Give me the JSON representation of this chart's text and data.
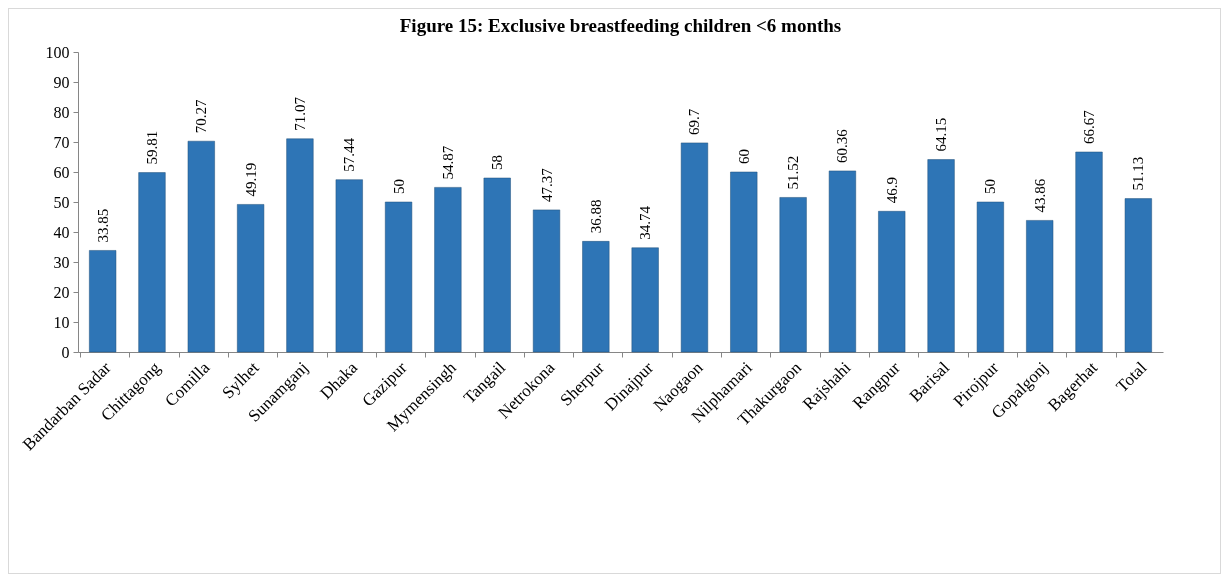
{
  "chart_data": {
    "type": "bar",
    "title": "Figure 15: Exclusive breastfeeding children <6 months",
    "categories": [
      "Bandarban Sadar",
      "Chittagong",
      "Comilla",
      "Sylhet",
      "Sunamganj",
      "Dhaka",
      "Gazipur",
      "Mymensingh",
      "Tangail",
      "Netrokona",
      "Sherpur",
      "Dinajpur",
      "Naogaon",
      "Nilphamari",
      "Thakurgaon",
      "Rajshahi",
      "Rangpur",
      "Barisal",
      "Pirojpur",
      "Gopalgonj",
      "Bagerhat",
      "Total"
    ],
    "values": [
      33.85,
      59.81,
      70.27,
      49.19,
      71.07,
      57.44,
      50,
      54.87,
      58,
      47.37,
      36.88,
      34.74,
      69.7,
      60,
      51.52,
      60.36,
      46.9,
      64.15,
      50,
      43.86,
      66.67,
      51.13
    ],
    "color": "#2e75b6",
    "ylim": [
      0,
      100
    ],
    "yticks": [
      0,
      10,
      20,
      30,
      40,
      50,
      60,
      70,
      80,
      90,
      100
    ],
    "grid": false,
    "data_labels": true
  }
}
